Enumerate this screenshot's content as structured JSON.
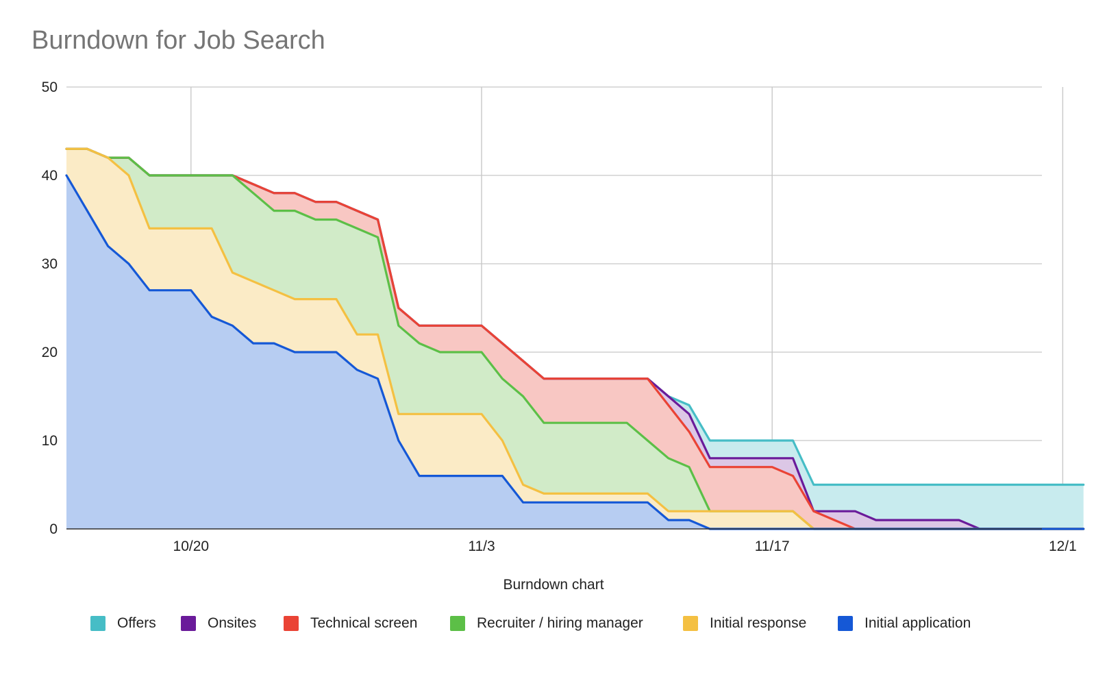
{
  "chart_data": {
    "type": "area",
    "stacked": false,
    "title": "Burndown for Job Search",
    "xlabel": "Burndown chart",
    "ylabel": "",
    "ylim": [
      0,
      50
    ],
    "y_ticks": [
      "0",
      "10",
      "20",
      "30",
      "40",
      "50"
    ],
    "x_ticks": [
      "10/20",
      "11/3",
      "11/17",
      "12/1"
    ],
    "grid": true,
    "legend_position": "bottom",
    "x": [
      "10/14",
      "10/15",
      "10/16",
      "10/17",
      "10/18",
      "10/19",
      "10/20",
      "10/21",
      "10/22",
      "10/23",
      "10/24",
      "10/25",
      "10/26",
      "10/27",
      "10/28",
      "10/29",
      "10/30",
      "10/31",
      "11/1",
      "11/2",
      "11/3",
      "11/4",
      "11/5",
      "11/6",
      "11/7",
      "11/8",
      "11/9",
      "11/10",
      "11/11",
      "11/12",
      "11/13",
      "11/14",
      "11/15",
      "11/16",
      "11/17",
      "11/18",
      "11/19",
      "11/20",
      "11/21",
      "11/22",
      "11/23",
      "11/24",
      "11/25",
      "11/26",
      "11/27",
      "11/28",
      "11/29",
      "11/30",
      "12/1",
      "12/2"
    ],
    "series": [
      {
        "name": "Offers",
        "color": "#46bdc6",
        "fill": "#c8ebee",
        "values": [
          43,
          43,
          42,
          42,
          40,
          40,
          40,
          40,
          40,
          39,
          38,
          38,
          37,
          37,
          36,
          35,
          25,
          23,
          23,
          23,
          23,
          21,
          19,
          17,
          17,
          17,
          17,
          17,
          17,
          15,
          14,
          10,
          10,
          10,
          10,
          10,
          5,
          5,
          5,
          5,
          5,
          5,
          5,
          5,
          5,
          5,
          5,
          5,
          5,
          5
        ]
      },
      {
        "name": "Onsites",
        "color": "#6a1b9a",
        "fill": "#dcc7e6",
        "values": [
          43,
          43,
          42,
          42,
          40,
          40,
          40,
          40,
          40,
          39,
          38,
          38,
          37,
          37,
          36,
          35,
          25,
          23,
          23,
          23,
          23,
          21,
          19,
          17,
          17,
          17,
          17,
          17,
          17,
          15,
          13,
          8,
          8,
          8,
          8,
          8,
          2,
          2,
          2,
          1,
          1,
          1,
          1,
          1,
          0,
          0,
          0,
          0,
          0,
          0
        ]
      },
      {
        "name": "Technical screen",
        "color": "#ea4335",
        "fill": "#f8c7c3",
        "values": [
          43,
          43,
          42,
          42,
          40,
          40,
          40,
          40,
          40,
          39,
          38,
          38,
          37,
          37,
          36,
          35,
          25,
          23,
          23,
          23,
          23,
          21,
          19,
          17,
          17,
          17,
          17,
          17,
          17,
          14,
          11,
          7,
          7,
          7,
          7,
          6,
          2,
          1,
          0,
          0,
          0,
          0,
          0,
          0,
          0,
          0,
          0,
          0,
          0,
          0
        ]
      },
      {
        "name": "Recruiter / hiring manager",
        "color": "#5cbf47",
        "fill": "#d1ebc8",
        "values": [
          43,
          43,
          42,
          42,
          40,
          40,
          40,
          40,
          40,
          38,
          36,
          36,
          35,
          35,
          34,
          33,
          23,
          21,
          20,
          20,
          20,
          17,
          15,
          12,
          12,
          12,
          12,
          12,
          10,
          8,
          7,
          2,
          2,
          2,
          2,
          2,
          0,
          0,
          0,
          0,
          0,
          0,
          0,
          0,
          0,
          0,
          0,
          0,
          0,
          0
        ]
      },
      {
        "name": "Initial response",
        "color": "#f4c042",
        "fill": "#fbebc6",
        "values": [
          43,
          43,
          42,
          40,
          34,
          34,
          34,
          34,
          29,
          28,
          27,
          26,
          26,
          26,
          22,
          22,
          13,
          13,
          13,
          13,
          13,
          10,
          5,
          4,
          4,
          4,
          4,
          4,
          4,
          2,
          2,
          2,
          2,
          2,
          2,
          2,
          0,
          0,
          0,
          0,
          0,
          0,
          0,
          0,
          0,
          0,
          0,
          0,
          0,
          0
        ]
      },
      {
        "name": "Initial application",
        "color": "#1558d6",
        "fill": "#b7cdf2",
        "values": [
          40,
          36,
          32,
          30,
          27,
          27,
          27,
          24,
          23,
          21,
          21,
          20,
          20,
          20,
          18,
          17,
          10,
          6,
          6,
          6,
          6,
          6,
          3,
          3,
          3,
          3,
          3,
          3,
          3,
          1,
          1,
          0,
          0,
          0,
          0,
          0,
          0,
          0,
          0,
          0,
          0,
          0,
          0,
          0,
          0,
          0,
          0,
          0,
          0,
          0
        ]
      }
    ]
  }
}
